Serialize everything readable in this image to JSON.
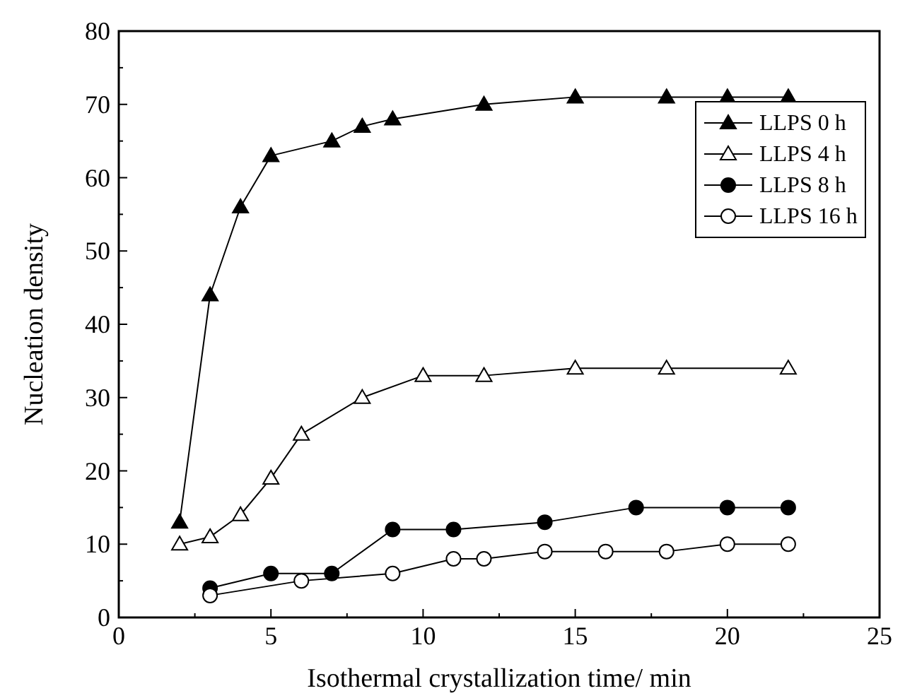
{
  "chart_data": {
    "type": "line",
    "xlabel": "Isothermal crystallization time/ min",
    "ylabel": "Nucleation density",
    "xlim": [
      0,
      25
    ],
    "ylim": [
      0,
      80
    ],
    "xticks": [
      0,
      {
        "value": 2.5,
        "label": null
      },
      5,
      {
        "value": 7.5,
        "label": null
      },
      10,
      {
        "value": 12.5,
        "label": null
      },
      15,
      {
        "value": 17.5,
        "label": null
      },
      20,
      {
        "value": 22.5,
        "label": null
      },
      25
    ],
    "yticks": [
      0,
      {
        "value": 5,
        "label": null
      },
      10,
      {
        "value": 15,
        "label": null
      },
      20,
      {
        "value": 25,
        "label": null
      },
      30,
      {
        "value": 35,
        "label": null
      },
      40,
      {
        "value": 45,
        "label": null
      },
      50,
      {
        "value": 55,
        "label": null
      },
      60,
      {
        "value": 65,
        "label": null
      },
      70,
      {
        "value": 75,
        "label": null
      },
      80
    ],
    "grid": false,
    "legend": "top right",
    "line_style": "solid",
    "series": [
      {
        "name": "LLPS 0 h",
        "color": "#000000",
        "marker": "triangle",
        "x": [
          2,
          3,
          4,
          5,
          7,
          8,
          9,
          12,
          15,
          18,
          20,
          22
        ],
        "values": [
          13,
          44,
          56,
          63,
          65,
          67,
          68,
          70,
          71,
          71,
          71,
          71
        ]
      },
      {
        "name": "LLPS 4 h",
        "color": "#000000",
        "marker": "triangle",
        "x": [
          2,
          3,
          4,
          5,
          6,
          8,
          10,
          12,
          15,
          18,
          22
        ],
        "values": [
          10,
          11,
          14,
          19,
          25,
          30,
          33,
          33,
          34,
          34,
          34
        ]
      },
      {
        "name": "LLPS 8 h",
        "color": "#000000",
        "marker": "circle",
        "x": [
          3,
          5,
          7,
          9,
          11,
          14,
          17,
          20,
          22
        ],
        "values": [
          4,
          6,
          6,
          12,
          12,
          13,
          15,
          15,
          15
        ]
      },
      {
        "name": "LLPS 16 h",
        "color": "#000000",
        "marker": "circle",
        "x": [
          3,
          6,
          9,
          11,
          12,
          14,
          16,
          18,
          20,
          22
        ],
        "values": [
          3,
          5,
          6,
          8,
          8,
          9,
          9,
          9,
          10,
          10
        ]
      }
    ]
  }
}
